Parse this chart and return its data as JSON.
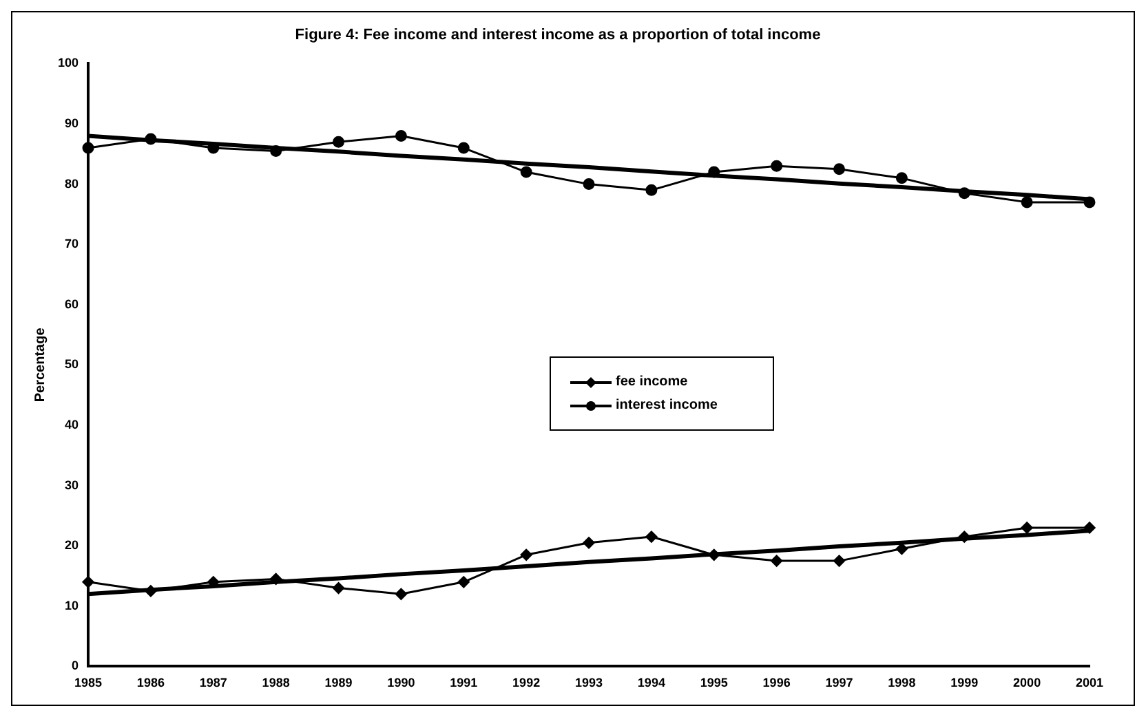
{
  "chart_data": {
    "type": "line",
    "title": "Figure 4: Fee income and interest income as a proportion of total income",
    "ylabel": "Percentage",
    "x": [
      1985,
      1986,
      1987,
      1988,
      1989,
      1990,
      1991,
      1992,
      1993,
      1994,
      1995,
      1996,
      1997,
      1998,
      1999,
      2000,
      2001
    ],
    "xlim": [
      1985,
      2001
    ],
    "xticks": [
      1985,
      1986,
      1987,
      1988,
      1989,
      1990,
      1991,
      1992,
      1993,
      1994,
      1995,
      1996,
      1997,
      1998,
      1999,
      2000,
      2001
    ],
    "ylim": [
      0,
      100
    ],
    "yticks": [
      0,
      10,
      20,
      30,
      40,
      50,
      60,
      70,
      80,
      90,
      100
    ],
    "grid": false,
    "legend": "center",
    "line_style": "solid",
    "series": [
      {
        "name": "fee income",
        "color": "#000000",
        "marker": "diamond",
        "values": [
          14,
          12.5,
          14,
          14.5,
          13,
          12,
          14,
          18.5,
          20.5,
          21.5,
          18.5,
          17.5,
          17.5,
          19.5,
          21.5,
          23,
          23
        ]
      },
      {
        "name": "interest income",
        "color": "#000000",
        "marker": "circle",
        "values": [
          86,
          87.5,
          86,
          85.5,
          87,
          88,
          86,
          82,
          80,
          79,
          82,
          83,
          82.5,
          81,
          78.5,
          77,
          77
        ]
      },
      {
        "type": "line",
        "color": "#000000",
        "marker": "none",
        "values": [
          12,
          12.7,
          13.3,
          14,
          14.6,
          15.3,
          15.9,
          16.6,
          17.3,
          17.9,
          18.6,
          19.2,
          19.9,
          20.5,
          21.2,
          21.8,
          22.5
        ]
      },
      {
        "type": "line",
        "color": "#000000",
        "marker": "none",
        "values": [
          88,
          87.3,
          86.7,
          86,
          85.4,
          84.7,
          84.1,
          83.4,
          82.8,
          82.1,
          81.4,
          80.8,
          80.1,
          79.5,
          78.8,
          78.2,
          77.5
        ]
      }
    ]
  }
}
